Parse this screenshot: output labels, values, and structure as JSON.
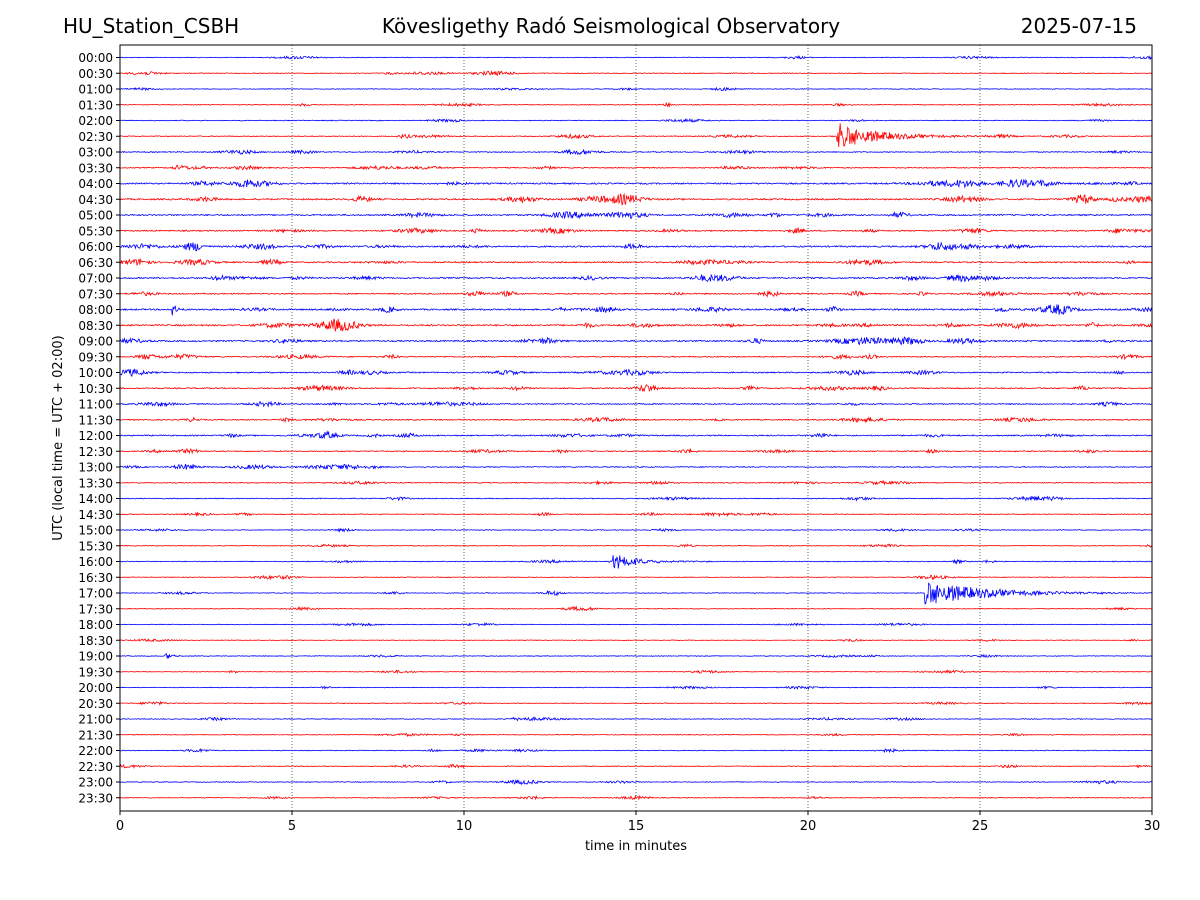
{
  "header": {
    "station": "HU_Station_CSBH",
    "observatory": "Kövesligethy Radó Seismological Observatory",
    "date": "2025-07-15"
  },
  "chart_data": {
    "type": "line",
    "title": "Kövesligethy Radó Seismological Observatory",
    "xlabel": "time in minutes",
    "ylabel": "UTC (local time = UTC + 02:00)",
    "xlim": [
      0,
      30
    ],
    "xticks": [
      0,
      5,
      10,
      15,
      20,
      25,
      30
    ],
    "vertical_gridlines_dotted": [
      5,
      10,
      15,
      20,
      25
    ],
    "trace_colors": [
      "#0000ff",
      "#ff0000"
    ],
    "rows": [
      "00:00",
      "00:30",
      "01:00",
      "01:30",
      "02:00",
      "02:30",
      "03:00",
      "03:30",
      "04:00",
      "04:30",
      "05:00",
      "05:30",
      "06:00",
      "06:30",
      "07:00",
      "07:30",
      "08:00",
      "08:30",
      "09:00",
      "09:30",
      "10:00",
      "10:30",
      "11:00",
      "11:30",
      "12:00",
      "12:30",
      "13:00",
      "13:30",
      "14:00",
      "14:30",
      "15:00",
      "15:30",
      "16:00",
      "16:30",
      "17:00",
      "17:30",
      "18:00",
      "18:30",
      "19:00",
      "19:30",
      "20:00",
      "20:30",
      "21:00",
      "21:30",
      "22:00",
      "22:30",
      "23:00",
      "23:30"
    ],
    "row_noise_level": [
      0.3,
      0.35,
      0.3,
      0.35,
      0.35,
      0.45,
      0.5,
      0.55,
      0.9,
      0.9,
      0.8,
      0.7,
      0.9,
      0.8,
      0.8,
      0.7,
      0.9,
      0.95,
      0.85,
      0.6,
      0.7,
      0.7,
      0.6,
      0.6,
      0.7,
      0.6,
      0.5,
      0.45,
      0.45,
      0.4,
      0.35,
      0.3,
      0.35,
      0.3,
      0.3,
      0.3,
      0.25,
      0.25,
      0.3,
      0.25,
      0.25,
      0.3,
      0.35,
      0.3,
      0.35,
      0.35,
      0.35,
      0.35
    ],
    "events": [
      {
        "row": "02:30",
        "start_min": 20.8,
        "peak_amplitude": 1.6,
        "duration_min": 4.5
      },
      {
        "row": "08:00",
        "start_min": 1.5,
        "peak_amplitude": 0.9,
        "duration_min": 0.5
      },
      {
        "row": "16:00",
        "start_min": 14.3,
        "peak_amplitude": 0.7,
        "duration_min": 3.0
      },
      {
        "row": "17:00",
        "start_min": 23.4,
        "peak_amplitude": 1.4,
        "duration_min": 6.6
      },
      {
        "row": "19:00",
        "start_min": 1.3,
        "peak_amplitude": 0.55,
        "duration_min": 0.5
      }
    ]
  }
}
